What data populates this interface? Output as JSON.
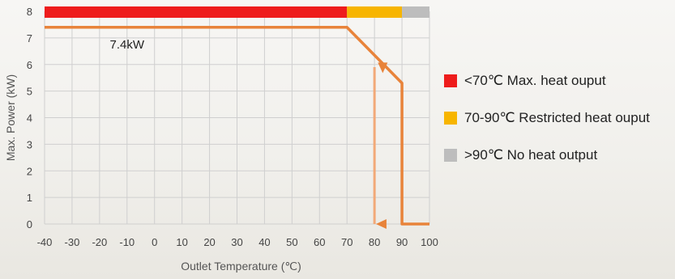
{
  "chart_data": {
    "type": "line",
    "xlabel": "Outlet Temperature (℃)",
    "ylabel": "Max. Power (kW)",
    "xlim": [
      -40,
      100
    ],
    "ylim": [
      0,
      8
    ],
    "x_ticks": [
      "-40",
      "-30",
      "-20",
      "-10",
      "0",
      "10",
      "20",
      "30",
      "40",
      "50",
      "60",
      "70",
      "80",
      "90",
      "100"
    ],
    "y_ticks": [
      "0",
      "1",
      "2",
      "3",
      "4",
      "5",
      "6",
      "7",
      "8"
    ],
    "grid": true,
    "series": [
      {
        "color": "#e8833a",
        "x": [
          -40,
          70,
          90,
          90,
          100
        ],
        "y": [
          7.4,
          7.4,
          5.3,
          0,
          0
        ]
      },
      {
        "color": "#f2a978",
        "x": [
          80,
          80
        ],
        "y": [
          5.9,
          0
        ]
      }
    ],
    "bands": [
      {
        "x0": -40,
        "x1": 70,
        "color": "#ee1c1c",
        "label": "<70℃ Max. heat ouput"
      },
      {
        "x0": 70,
        "x1": 90,
        "color": "#f7b500",
        "label": "70-90℃ Restricted heat ouput"
      },
      {
        "x0": 90,
        "x1": 100,
        "color": "#bdbdbd",
        "label": ">90℃ No heat output"
      }
    ],
    "annotations": [
      {
        "text": "7.4kW",
        "x": -10,
        "y": 6.6
      }
    ],
    "arrows": [
      {
        "x": 83,
        "y": 5.8,
        "direction": "down"
      },
      {
        "x": 82,
        "y": 0,
        "direction": "left"
      }
    ],
    "legend_position": "right"
  }
}
